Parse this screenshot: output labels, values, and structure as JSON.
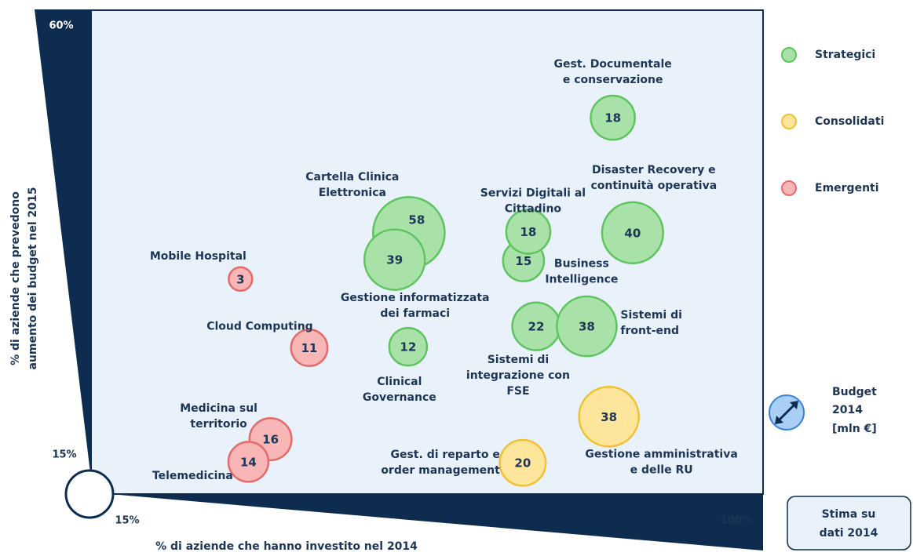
{
  "chart_data": {
    "type": "bubble",
    "xlabel": "% di aziende che hanno investito nel 2014",
    "ylabel": [
      "% di aziende che prevedono",
      "aumento dei budget nel 2015"
    ],
    "xlim": [
      15,
      100
    ],
    "ylim": [
      15,
      60
    ],
    "xticks": [
      {
        "value": 15,
        "label": "15%"
      },
      {
        "value": 100,
        "label": "100%"
      }
    ],
    "yticks": [
      {
        "value": 15,
        "label": "15%"
      },
      {
        "value": 60,
        "label": "60%"
      }
    ],
    "size_label": [
      "Budget",
      "2014",
      "[mln €]"
    ],
    "note": [
      "Stima su",
      "dati 2014"
    ],
    "series": [
      {
        "name": "Strategici",
        "color": "#a9e2a9",
        "stroke": "#5fc45f",
        "labels": [
          [
            "Gest. Documentale",
            "e conservazione"
          ],
          [
            "Disaster Recovery e",
            "continuità operativa"
          ],
          [
            "Business",
            "Intelligence"
          ],
          [
            "Servizi Digitali al",
            "Cittadino"
          ],
          [
            "Cartella Clinica",
            "Elettronica"
          ],
          [
            "Gestione informatizzata",
            "dei farmaci"
          ],
          [
            "Sistemi di",
            "integrazione con",
            "FSE"
          ],
          [
            "Sistemi di",
            "front-end"
          ],
          [
            "Clinical",
            "Governance"
          ]
        ],
        "x": [
          81,
          83.5,
          69.7,
          70.3,
          55.2,
          53.4,
          71.3,
          77.7,
          55.1
        ],
        "values": [
          50,
          39.3,
          36.7,
          39.4,
          39.3,
          36.8,
          30.6,
          30.6,
          28.7
        ],
        "sizes": [
          18,
          40,
          15,
          18,
          58,
          39,
          22,
          38,
          12
        ]
      },
      {
        "name": "Consolidati",
        "color": "#fde59c",
        "stroke": "#f0c232",
        "labels": [
          [
            "Gestione amministrativa",
            "e delle RU"
          ],
          [
            "Gest. di reparto e",
            "order management"
          ]
        ],
        "x": [
          80.5,
          69.6
        ],
        "values": [
          22.2,
          17.9
        ],
        "sizes": [
          38,
          20
        ]
      },
      {
        "name": "Emergenti",
        "color": "#f8b6b6",
        "stroke": "#e56a6a",
        "labels": [
          [
            "Mobile Hospital"
          ],
          [
            "Cloud Computing"
          ],
          [
            "Medicina sul",
            "territorio"
          ],
          [
            "Telemedicina"
          ]
        ],
        "x": [
          33.9,
          42.6,
          37.7,
          34.9
        ],
        "values": [
          35,
          28.6,
          20.1,
          18
        ],
        "sizes": [
          3,
          11,
          16,
          14
        ]
      }
    ]
  }
}
